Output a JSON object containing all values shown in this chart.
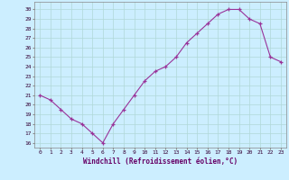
{
  "x": [
    0,
    1,
    2,
    3,
    4,
    5,
    6,
    7,
    8,
    9,
    10,
    11,
    12,
    13,
    14,
    15,
    16,
    17,
    18,
    19,
    20,
    21,
    22,
    23
  ],
  "y": [
    21,
    20.5,
    19.5,
    18.5,
    18,
    17,
    16,
    18,
    19.5,
    21,
    22.5,
    23.5,
    24,
    25,
    26.5,
    27.5,
    28.5,
    29.5,
    30,
    30,
    29,
    28.5,
    25,
    24.5
  ],
  "line_color": "#993399",
  "marker": "+",
  "bg_color": "#cceeff",
  "grid_color": "#aaddcc",
  "xlabel": "Windchill (Refroidissement éolien,°C)",
  "xlabel_color": "#660066",
  "ylabel_ticks": [
    16,
    17,
    18,
    19,
    20,
    21,
    22,
    23,
    24,
    25,
    26,
    27,
    28,
    29,
    30
  ],
  "ylim": [
    15.5,
    30.8
  ],
  "xlim": [
    -0.5,
    23.5
  ],
  "tick_color": "#330033",
  "spine_color": "#888888"
}
